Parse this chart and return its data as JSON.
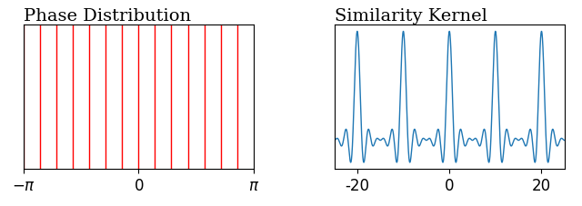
{
  "title_left": "Phase Distribution",
  "title_right": "Similarity Kernel",
  "left_line_color": "#ff0000",
  "right_line_color": "#1f77b4",
  "n_phases": 14,
  "phase_xlim": [
    -3.14159265,
    3.14159265
  ],
  "kernel_xlim": [
    -25,
    25
  ],
  "kernel_xticks": [
    -20,
    0,
    20
  ],
  "phase_xticks_vals": [
    -3.14159265,
    0,
    3.14159265
  ],
  "title_fontsize": 14,
  "tick_fontsize": 12,
  "background_color": "#ffffff",
  "figsize": [
    6.4,
    2.27
  ],
  "dpi": 100
}
